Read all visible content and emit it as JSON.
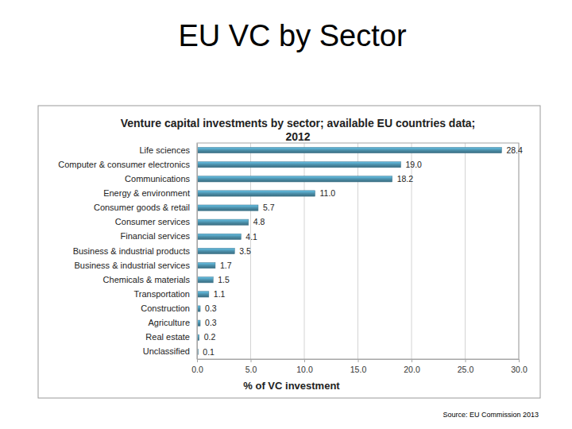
{
  "page": {
    "title": "EU VC by Sector",
    "source": "Source: EU Commission 2013"
  },
  "chart_data": {
    "type": "bar",
    "title": "Venture capital investments by sector; available EU countries data; 2012",
    "xlabel": "% of VC investment",
    "orientation": "horizontal",
    "categories": [
      "Life sciences",
      "Computer & consumer electronics",
      "Communications",
      "Energy & environment",
      "Consumer goods & retail",
      "Consumer services",
      "Financial services",
      "Business & industrial products",
      "Business & industrial services",
      "Chemicals & materials",
      "Transportation",
      "Construction",
      "Agriculture",
      "Real estate",
      "Unclassified"
    ],
    "values": [
      28.4,
      19.0,
      18.2,
      11.0,
      5.7,
      4.8,
      4.1,
      3.5,
      1.7,
      1.5,
      1.1,
      0.3,
      0.3,
      0.2,
      0.1
    ],
    "value_labels": [
      "28.4",
      "19.0",
      "18.2",
      "11.0",
      "5.7",
      "4.8",
      "4.1",
      "3.5",
      "1.7",
      "1.5",
      "1.1",
      "0.3",
      "0.3",
      "0.2",
      "0.1"
    ],
    "data_labels": true,
    "color": "#4a8ca6",
    "xlim": [
      0,
      30
    ],
    "xticks": [
      {
        "value": 0,
        "label": "0.0"
      },
      {
        "value": 5,
        "label": "5.0"
      },
      {
        "value": 10,
        "label": "10.0"
      },
      {
        "value": 15,
        "label": "15.0"
      },
      {
        "value": 20,
        "label": "20.0"
      },
      {
        "value": 25,
        "label": "25.0"
      },
      {
        "value": 30,
        "label": "30.0"
      }
    ],
    "grid": true
  }
}
